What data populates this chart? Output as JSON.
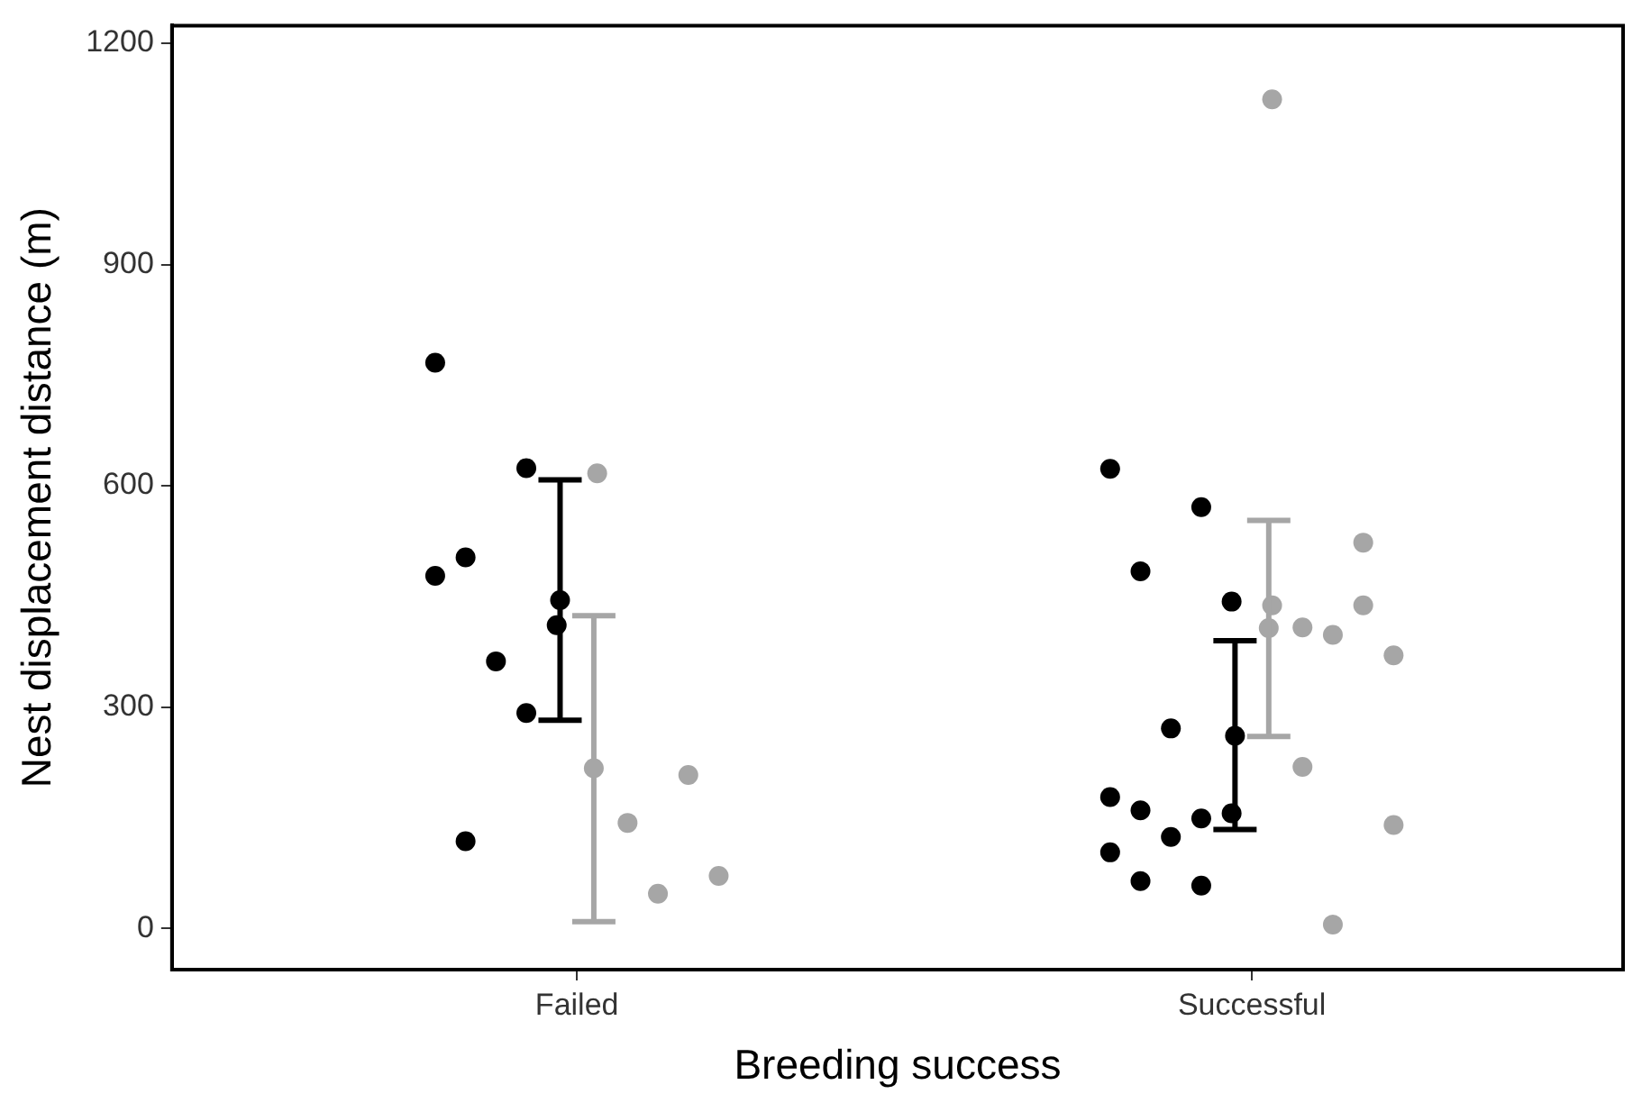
{
  "chart_data": {
    "type": "scatter",
    "xlabel": "Breeding success",
    "ylabel": "Nest displacement distance (m)",
    "categories": [
      "Failed",
      "Successful"
    ],
    "ylim": [
      -56,
      1224
    ],
    "yticks": [
      0,
      300,
      600,
      900,
      1200
    ],
    "grid": false,
    "legend": false,
    "marker": "circle",
    "series": [
      {
        "color": "#000000",
        "x": [
          "Failed",
          "Failed",
          "Failed",
          "Failed",
          "Failed",
          "Failed",
          "Failed",
          "Failed",
          "Successful",
          "Successful",
          "Successful",
          "Successful",
          "Successful",
          "Successful",
          "Successful",
          "Successful",
          "Successful",
          "Successful",
          "Successful",
          "Successful",
          "Successful"
        ],
        "values": [
          767,
          624,
          503,
          411,
          362,
          478,
          292,
          118,
          623,
          571,
          484,
          443,
          271,
          178,
          149,
          160,
          156,
          124,
          103,
          58,
          64
        ]
      },
      {
        "color": "#a6a6a6",
        "x": [
          "Failed",
          "Failed",
          "Failed",
          "Failed",
          "Failed",
          "Successful",
          "Successful",
          "Successful",
          "Successful",
          "Successful",
          "Successful",
          "Successful",
          "Successful",
          "Successful",
          "Successful"
        ],
        "values": [
          617,
          208,
          143,
          71,
          47,
          1124,
          523,
          408,
          370,
          398,
          438,
          438,
          219,
          140,
          5
        ]
      },
      {
        "color": "#000000",
        "x": [
          "Failed",
          "Successful"
        ],
        "values": [
          445,
          261
        ],
        "errors": [
          [
            282,
            608
          ],
          [
            134,
            390
          ]
        ]
      },
      {
        "color": "#a6a6a6",
        "x": [
          "Failed",
          "Successful"
        ],
        "values": [
          217,
          407
        ],
        "errors": [
          [
            9,
            424
          ],
          [
            260,
            553
          ]
        ]
      }
    ]
  }
}
